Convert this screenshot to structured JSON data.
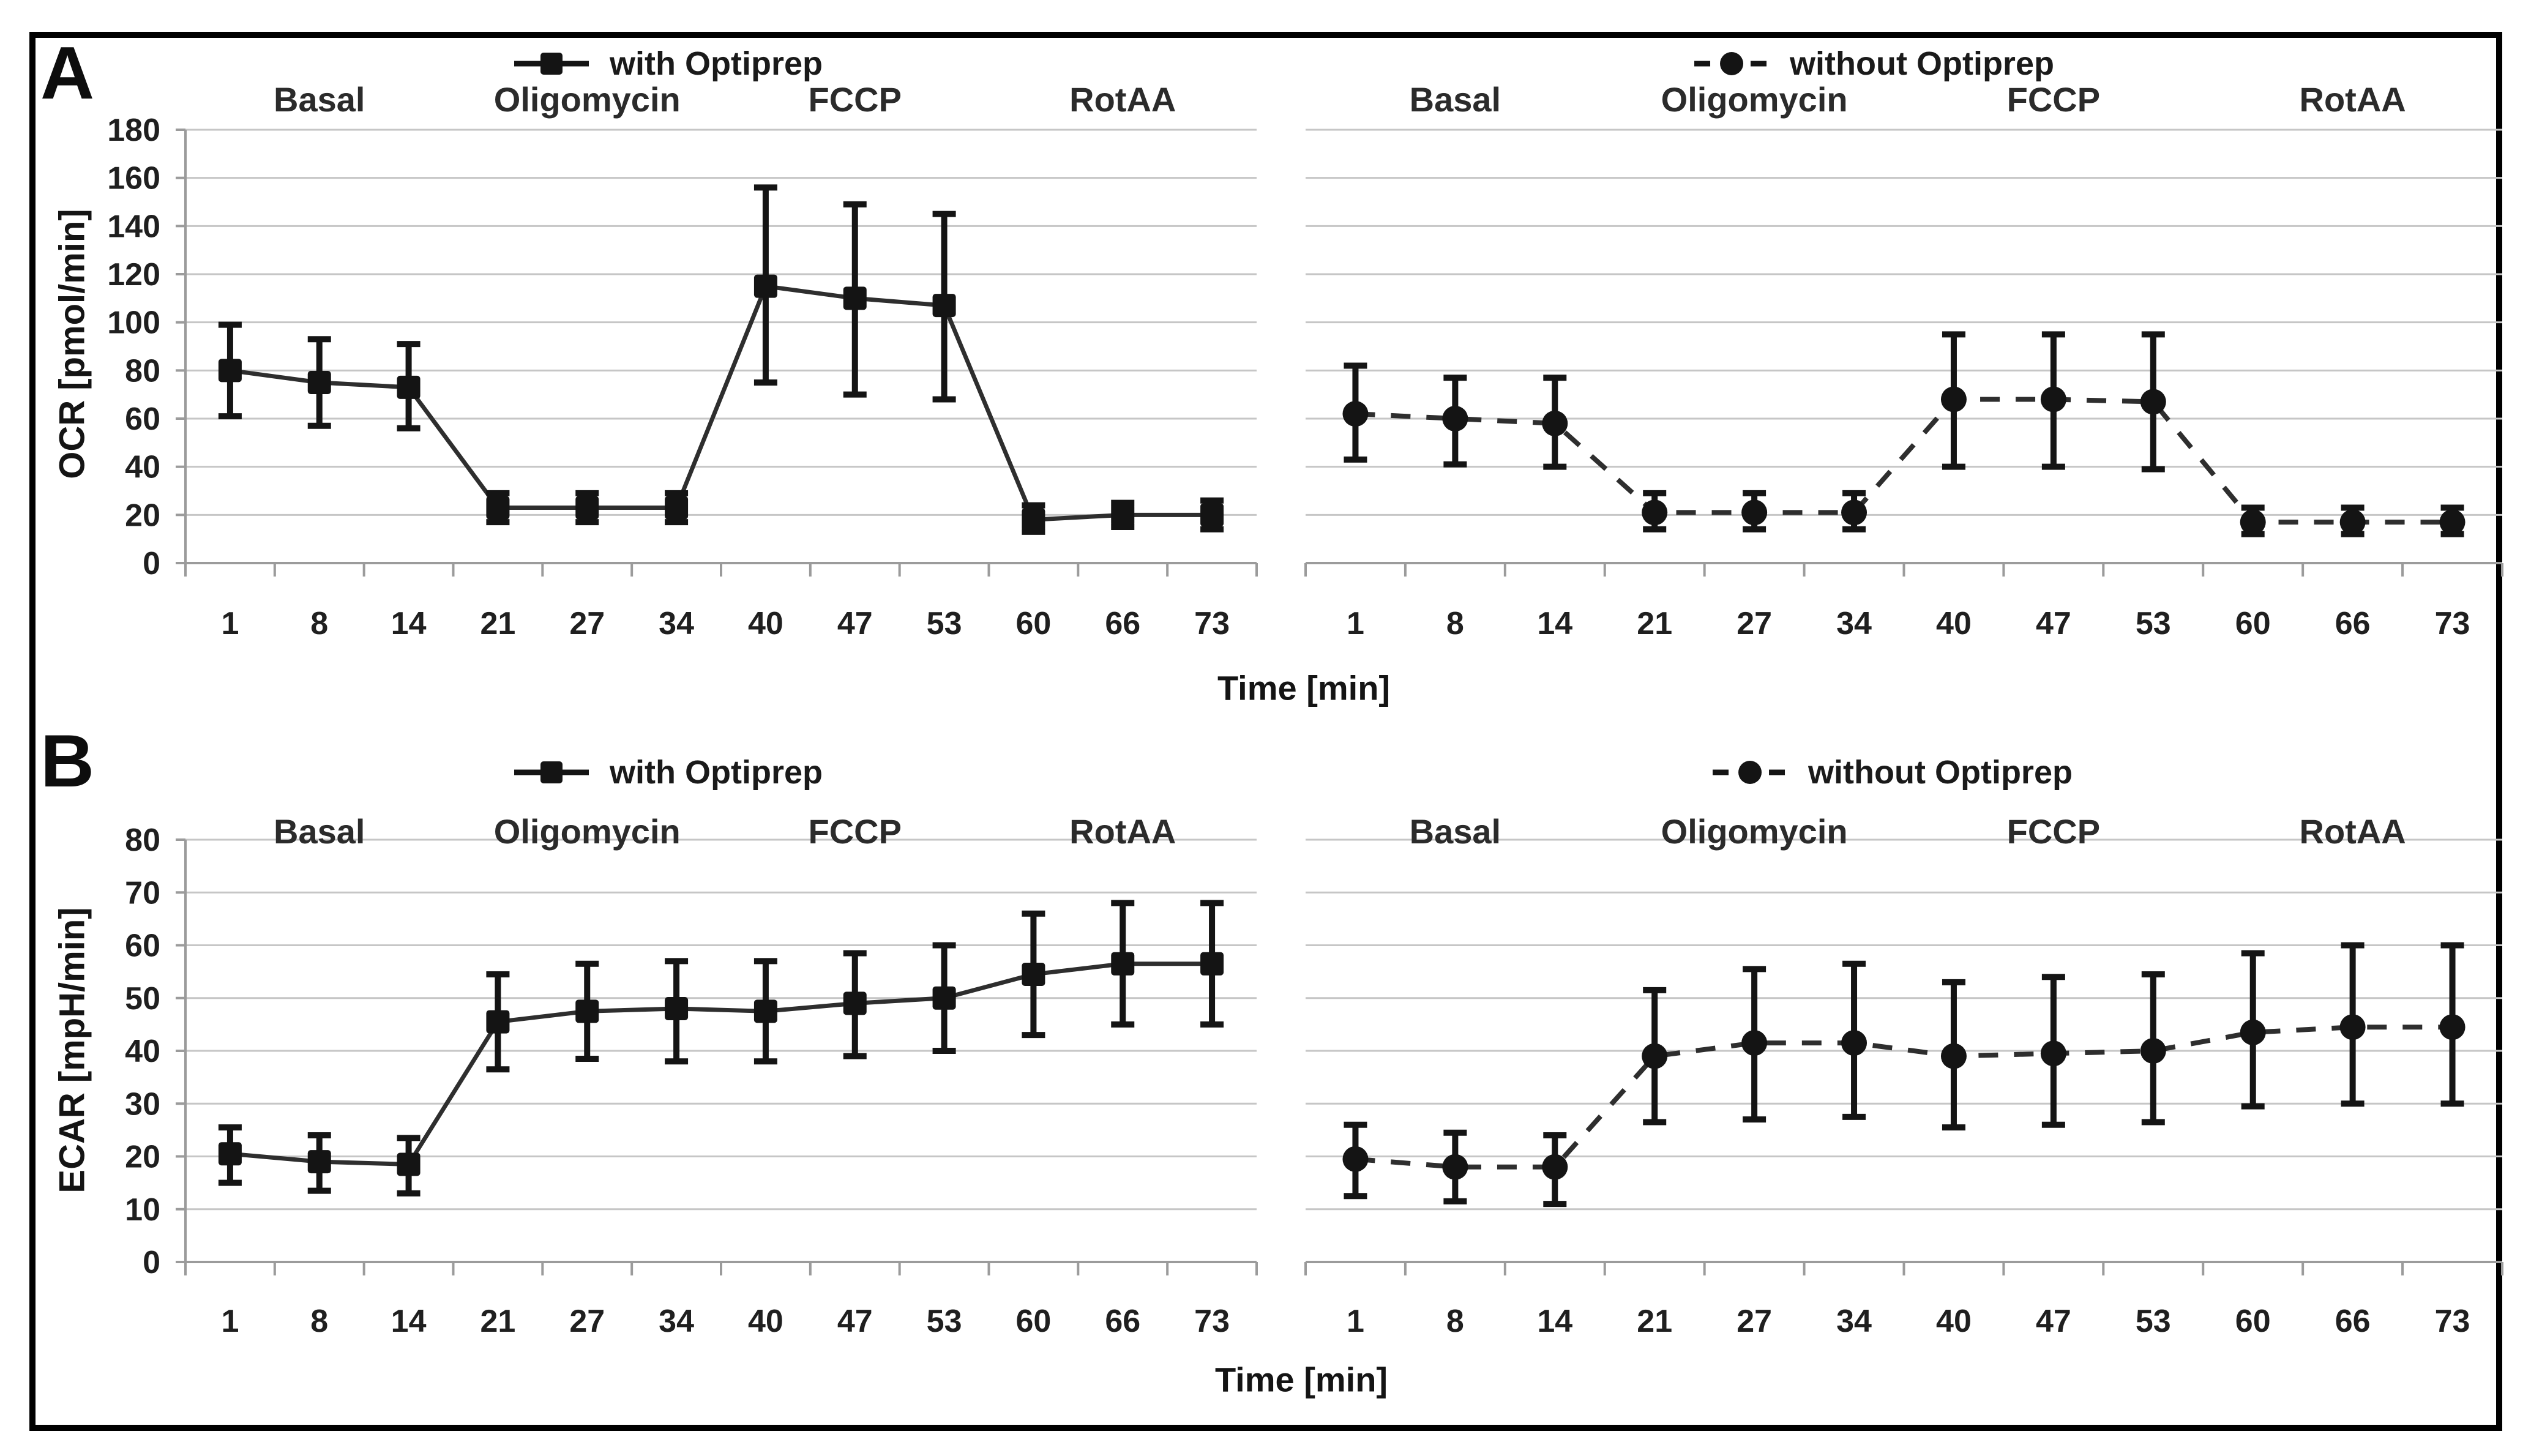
{
  "figure": {
    "time_axis_label": "Time [min]",
    "background_color": "#ffffff",
    "border_color": "#000000",
    "series_color": "#141414",
    "line_color": "#2e2e2e",
    "grid_color": "#c6c6c6",
    "axis_color": "#9b9b9b",
    "panels": [
      {
        "letter": "A",
        "ylabel": "OCR [pmol/min]"
      },
      {
        "letter": "B",
        "ylabel": "ECAR [mpH/min]"
      }
    ]
  },
  "chart_data": [
    {
      "id": "ocr-with-optiprep",
      "type": "line",
      "panel": "A",
      "side": "left",
      "legend": "with Optiprep",
      "marker": "square",
      "line_style": "solid",
      "ylabel": "OCR [pmol/min]",
      "ylim": [
        0,
        180
      ],
      "ystep": 20,
      "xlabel": "Time [min]",
      "x": [
        1,
        8,
        14,
        21,
        27,
        34,
        40,
        47,
        53,
        60,
        66,
        73
      ],
      "phases": [
        {
          "label": "Basal",
          "at_index": 1
        },
        {
          "label": "Oligomycin",
          "at_index": 4
        },
        {
          "label": "FCCP",
          "at_index": 7
        },
        {
          "label": "RotAA",
          "at_index": 10
        }
      ],
      "values": [
        80,
        75,
        73,
        23,
        23,
        23,
        115,
        110,
        107,
        18,
        20,
        20
      ],
      "err_low": [
        61,
        57,
        56,
        17,
        17,
        17,
        75,
        70,
        68,
        13,
        15,
        14
      ],
      "err_high": [
        99,
        93,
        91,
        29,
        29,
        29,
        156,
        149,
        145,
        24,
        25,
        26
      ],
      "grid": true,
      "legend_position": "top-center"
    },
    {
      "id": "ocr-without-optiprep",
      "type": "line",
      "panel": "A",
      "side": "right",
      "legend": "without Optiprep",
      "marker": "circle",
      "line_style": "dashed",
      "ylabel": "OCR [pmol/min]",
      "ylim": [
        0,
        180
      ],
      "ystep": 20,
      "xlabel": "Time [min]",
      "x": [
        1,
        8,
        14,
        21,
        27,
        34,
        40,
        47,
        53,
        60,
        66,
        73
      ],
      "phases": [
        {
          "label": "Basal",
          "at_index": 1
        },
        {
          "label": "Oligomycin",
          "at_index": 4
        },
        {
          "label": "FCCP",
          "at_index": 7
        },
        {
          "label": "RotAA",
          "at_index": 10
        }
      ],
      "values": [
        62,
        60,
        58,
        21,
        21,
        21,
        68,
        68,
        67,
        17,
        17,
        17
      ],
      "err_low": [
        43,
        41,
        40,
        14,
        14,
        14,
        40,
        40,
        39,
        12,
        12,
        12
      ],
      "err_high": [
        82,
        77,
        77,
        29,
        29,
        29,
        95,
        95,
        95,
        23,
        23,
        23
      ],
      "grid": true,
      "legend_position": "top-center"
    },
    {
      "id": "ecar-with-optiprep",
      "type": "line",
      "panel": "B",
      "side": "left",
      "legend": "with Optiprep",
      "marker": "square",
      "line_style": "solid",
      "ylabel": "ECAR [mpH/min]",
      "ylim": [
        0,
        80
      ],
      "ystep": 10,
      "xlabel": "Time [min]",
      "x": [
        1,
        8,
        14,
        21,
        27,
        34,
        40,
        47,
        53,
        60,
        66,
        73
      ],
      "phases": [
        {
          "label": "Basal",
          "at_index": 1
        },
        {
          "label": "Oligomycin",
          "at_index": 4
        },
        {
          "label": "FCCP",
          "at_index": 7
        },
        {
          "label": "RotAA",
          "at_index": 10
        }
      ],
      "values": [
        20.5,
        19,
        18.5,
        45.5,
        47.5,
        48,
        47.5,
        49,
        50,
        54.5,
        56.5,
        56.5
      ],
      "err_low": [
        15,
        13.5,
        13,
        36.5,
        38.5,
        38,
        38,
        39,
        40,
        43,
        45,
        45
      ],
      "err_high": [
        25.5,
        24,
        23.5,
        54.5,
        56.5,
        57,
        57,
        58.5,
        60,
        66,
        68,
        68
      ],
      "grid": true,
      "legend_position": "top-center"
    },
    {
      "id": "ecar-without-optiprep",
      "type": "line",
      "panel": "B",
      "side": "right",
      "legend": "without Optiprep",
      "marker": "circle",
      "line_style": "dashed",
      "ylabel": "ECAR [mpH/min]",
      "ylim": [
        0,
        80
      ],
      "ystep": 10,
      "xlabel": "Time [min]",
      "x": [
        1,
        8,
        14,
        21,
        27,
        34,
        40,
        47,
        53,
        60,
        66,
        73
      ],
      "phases": [
        {
          "label": "Basal",
          "at_index": 1
        },
        {
          "label": "Oligomycin",
          "at_index": 4
        },
        {
          "label": "FCCP",
          "at_index": 7
        },
        {
          "label": "RotAA",
          "at_index": 10
        }
      ],
      "values": [
        19.5,
        18,
        18,
        39,
        41.5,
        41.5,
        39,
        39.5,
        40,
        43.5,
        44.5,
        44.5
      ],
      "err_low": [
        12.5,
        11.5,
        11,
        26.5,
        27,
        27.5,
        25.5,
        26,
        26.5,
        29.5,
        30,
        30
      ],
      "err_high": [
        26,
        24.5,
        24,
        51.5,
        55.5,
        56.5,
        53,
        54,
        54.5,
        58.5,
        60,
        60
      ],
      "grid": true,
      "legend_position": "top-center"
    }
  ]
}
